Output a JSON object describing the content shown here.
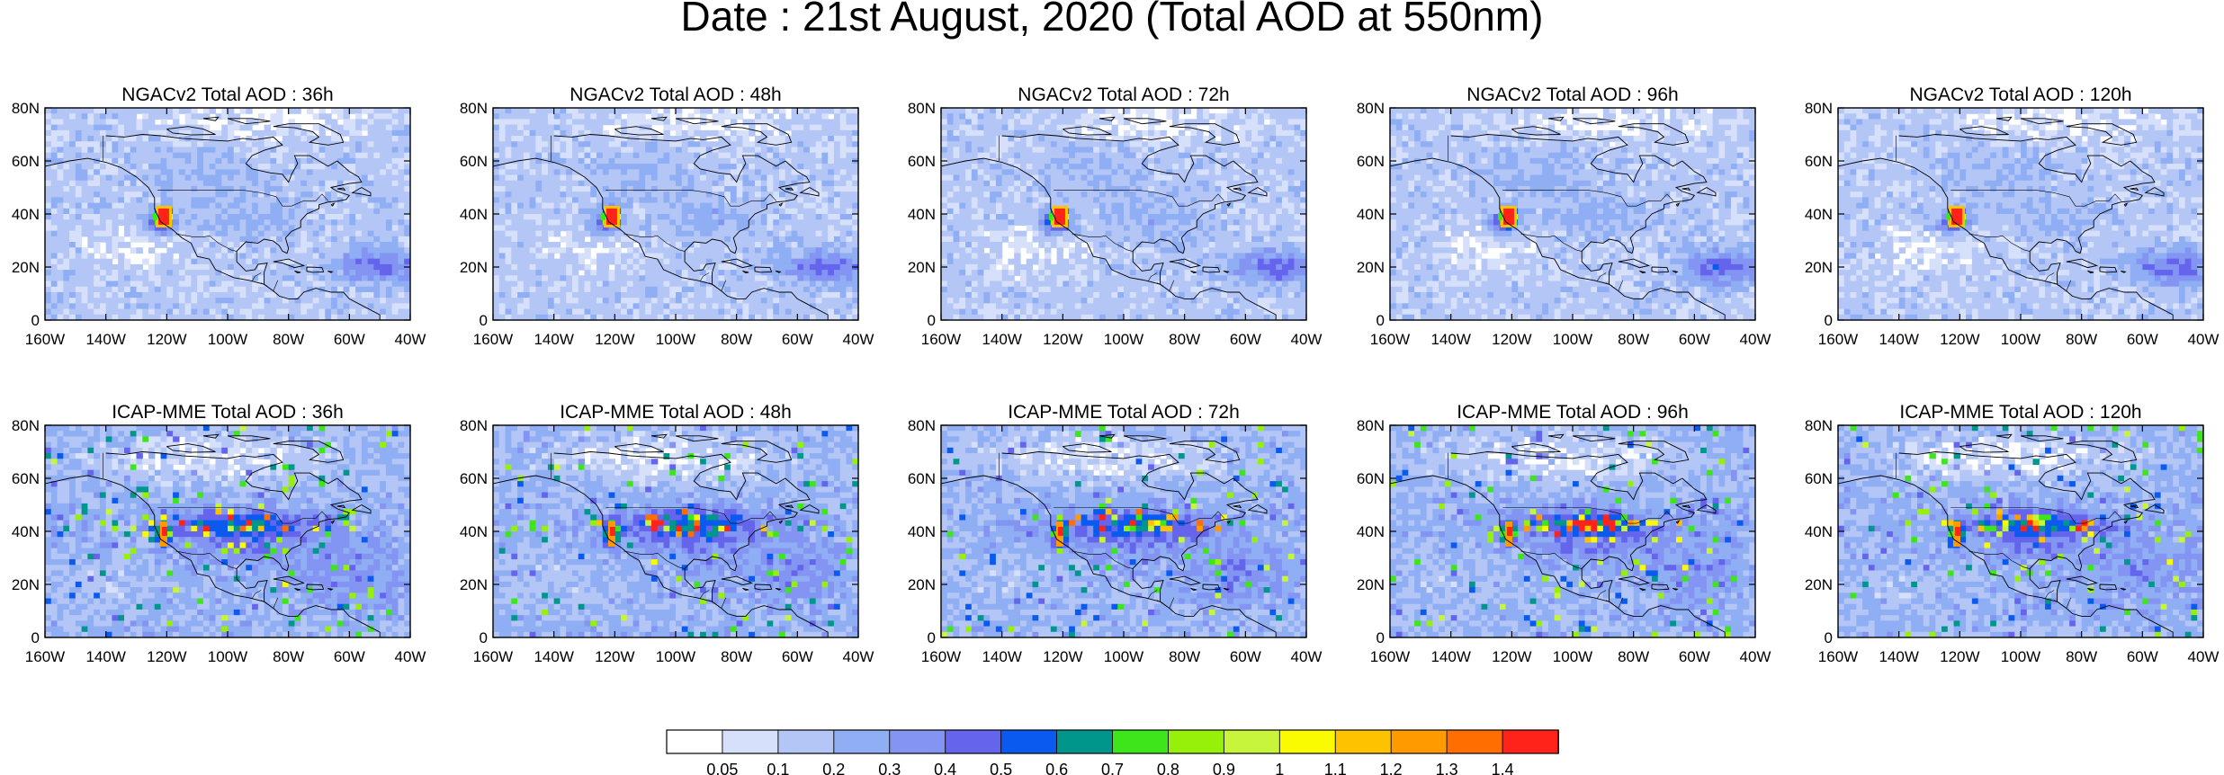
{
  "figure": {
    "title": "Date : 21st August, 2020 (Total AOD at 550nm)"
  },
  "panels": [
    {
      "row": 0,
      "col": 0,
      "title": "NGACv2 Total AOD : 36h",
      "model": "ngac"
    },
    {
      "row": 0,
      "col": 1,
      "title": "NGACv2 Total AOD : 48h",
      "model": "ngac"
    },
    {
      "row": 0,
      "col": 2,
      "title": "NGACv2 Total AOD : 72h",
      "model": "ngac"
    },
    {
      "row": 0,
      "col": 3,
      "title": "NGACv2 Total AOD : 96h",
      "model": "ngac"
    },
    {
      "row": 0,
      "col": 4,
      "title": "NGACv2 Total AOD : 120h",
      "model": "ngac"
    },
    {
      "row": 1,
      "col": 0,
      "title": "ICAP-MME Total AOD : 36h",
      "model": "icap"
    },
    {
      "row": 1,
      "col": 1,
      "title": "ICAP-MME Total AOD : 48h",
      "model": "icap"
    },
    {
      "row": 1,
      "col": 2,
      "title": "ICAP-MME Total AOD : 72h",
      "model": "icap"
    },
    {
      "row": 1,
      "col": 3,
      "title": "ICAP-MME Total AOD : 96h",
      "model": "icap"
    },
    {
      "row": 1,
      "col": 4,
      "title": "ICAP-MME Total AOD : 120h",
      "model": "icap"
    }
  ],
  "axes": {
    "lat_ticks": [
      "80N",
      "60N",
      "40N",
      "20N",
      "0"
    ],
    "lon_ticks": [
      "160W",
      "140W",
      "120W",
      "100W",
      "80W",
      "60W",
      "40W"
    ],
    "lon_range": [
      -160,
      -40
    ],
    "lat_range": [
      0,
      80
    ]
  },
  "colorbar": {
    "colors": [
      "#ffffff",
      "#d6e0fb",
      "#b4c6f6",
      "#8faef4",
      "#8394f2",
      "#6464ec",
      "#0a5af0",
      "#00968c",
      "#3ce61a",
      "#96f00a",
      "#c6f53c",
      "#fafa00",
      "#ffc200",
      "#ff9b00",
      "#ff6e00",
      "#ff2319"
    ],
    "labels": [
      "0.05",
      "0.1",
      "0.2",
      "0.3",
      "0.4",
      "0.5",
      "0.6",
      "0.7",
      "0.8",
      "0.9",
      "1",
      "1.1",
      "1.2",
      "1.3",
      "1.4"
    ]
  },
  "hotspot": {
    "lon": -121,
    "lat": 39
  }
}
